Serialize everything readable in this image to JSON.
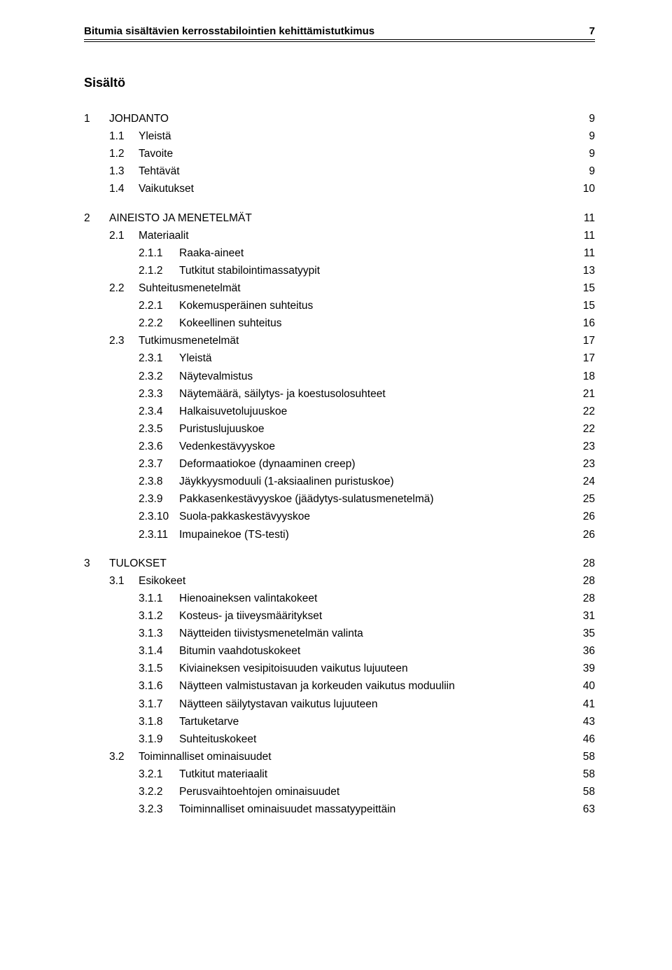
{
  "running_head": {
    "title": "Bitumia sisältävien kerrosstabilointien kehittämistutkimus",
    "page_number": "7"
  },
  "toc_title": "Sisältö",
  "entries": [
    {
      "level": 1,
      "num": "1",
      "label": "JOHDANTO",
      "page": "9",
      "spacer": false
    },
    {
      "level": 2,
      "num": "1.1",
      "label": "Yleistä",
      "page": "9"
    },
    {
      "level": 2,
      "num": "1.2",
      "label": "Tavoite",
      "page": "9"
    },
    {
      "level": 2,
      "num": "1.3",
      "label": "Tehtävät",
      "page": "9"
    },
    {
      "level": 2,
      "num": "1.4",
      "label": "Vaikutukset",
      "page": "10"
    },
    {
      "level": 1,
      "num": "2",
      "label": "AINEISTO JA MENETELMÄT",
      "page": "11",
      "spacer": true
    },
    {
      "level": 2,
      "num": "2.1",
      "label": "Materiaalit",
      "page": "11"
    },
    {
      "level": 3,
      "num": "2.1.1",
      "label": "Raaka-aineet",
      "page": "11"
    },
    {
      "level": 3,
      "num": "2.1.2",
      "label": "Tutkitut stabilointimassatyypit",
      "page": "13"
    },
    {
      "level": 2,
      "num": "2.2",
      "label": "Suhteitusmenetelmät",
      "page": "15"
    },
    {
      "level": 3,
      "num": "2.2.1",
      "label": "Kokemusperäinen suhteitus",
      "page": "15"
    },
    {
      "level": 3,
      "num": "2.2.2",
      "label": "Kokeellinen suhteitus",
      "page": "16"
    },
    {
      "level": 2,
      "num": "2.3",
      "label": "Tutkimusmenetelmät",
      "page": "17"
    },
    {
      "level": 3,
      "num": "2.3.1",
      "label": "Yleistä",
      "page": "17"
    },
    {
      "level": 3,
      "num": "2.3.2",
      "label": "Näytevalmistus",
      "page": "18"
    },
    {
      "level": 3,
      "num": "2.3.3",
      "label": "Näytemäärä, säilytys- ja koestusolosuhteet",
      "page": "21"
    },
    {
      "level": 3,
      "num": "2.3.4",
      "label": "Halkaisuvetolujuuskoe",
      "page": "22"
    },
    {
      "level": 3,
      "num": "2.3.5",
      "label": "Puristuslujuuskoe",
      "page": "22"
    },
    {
      "level": 3,
      "num": "2.3.6",
      "label": "Vedenkestävyyskoe",
      "page": "23"
    },
    {
      "level": 3,
      "num": "2.3.7",
      "label": "Deformaatiokoe (dynaaminen creep)",
      "page": "23"
    },
    {
      "level": 3,
      "num": "2.3.8",
      "label": "Jäykkyysmoduuli (1-aksiaalinen puristuskoe)",
      "page": "24"
    },
    {
      "level": 3,
      "num": "2.3.9",
      "label": "Pakkasenkestävyyskoe (jäädytys-sulatusmenetelmä)",
      "page": "25"
    },
    {
      "level": 3,
      "num": "2.3.10",
      "label": "Suola-pakkaskestävyyskoe",
      "page": "26"
    },
    {
      "level": 3,
      "num": "2.3.11",
      "label": "Imupainekoe (TS-testi)",
      "page": "26"
    },
    {
      "level": 1,
      "num": "3",
      "label": "TULOKSET",
      "page": "28",
      "spacer": true
    },
    {
      "level": 2,
      "num": "3.1",
      "label": "Esikokeet",
      "page": "28"
    },
    {
      "level": 3,
      "num": "3.1.1",
      "label": "Hienoaineksen valintakokeet",
      "page": "28"
    },
    {
      "level": 3,
      "num": "3.1.2",
      "label": "Kosteus- ja tiiveysmääritykset",
      "page": "31"
    },
    {
      "level": 3,
      "num": "3.1.3",
      "label": "Näytteiden tiivistysmenetelmän valinta",
      "page": "35"
    },
    {
      "level": 3,
      "num": "3.1.4",
      "label": "Bitumin vaahdotuskokeet",
      "page": "36"
    },
    {
      "level": 3,
      "num": "3.1.5",
      "label": "Kiviaineksen vesipitoisuuden vaikutus lujuuteen",
      "page": "39"
    },
    {
      "level": 3,
      "num": "3.1.6",
      "label": "Näytteen valmistustavan ja korkeuden vaikutus moduuliin",
      "page": "40"
    },
    {
      "level": 3,
      "num": "3.1.7",
      "label": "Näytteen säilytystavan vaikutus lujuuteen",
      "page": "41"
    },
    {
      "level": 3,
      "num": "3.1.8",
      "label": "Tartuketarve",
      "page": "43"
    },
    {
      "level": 3,
      "num": "3.1.9",
      "label": "Suhteituskokeet",
      "page": "46"
    },
    {
      "level": 2,
      "num": "3.2",
      "label": "Toiminnalliset ominaisuudet",
      "page": "58"
    },
    {
      "level": 3,
      "num": "3.2.1",
      "label": "Tutkitut materiaalit",
      "page": "58"
    },
    {
      "level": 3,
      "num": "3.2.2",
      "label": "Perusvaihtoehtojen ominaisuudet",
      "page": "58"
    },
    {
      "level": 3,
      "num": "3.2.3",
      "label": "Toiminnalliset ominaisuudet massatyypeittäin",
      "page": "63"
    }
  ]
}
